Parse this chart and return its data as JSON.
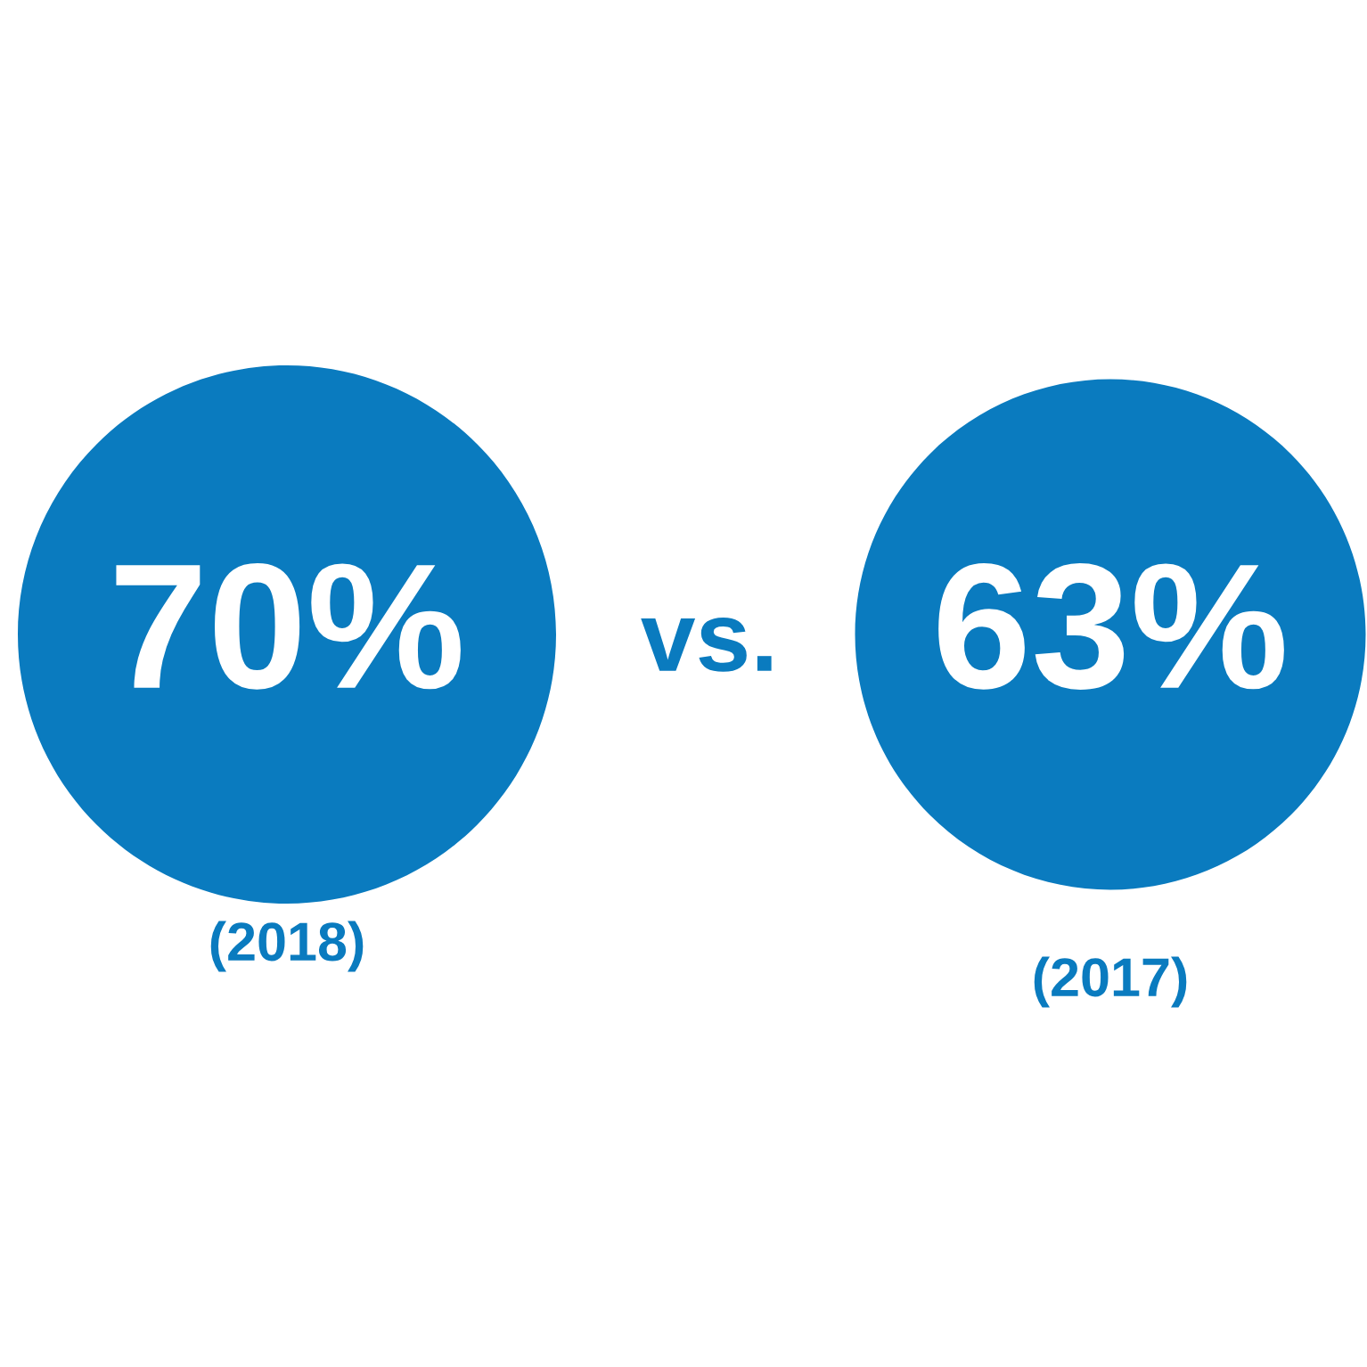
{
  "chart_data": {
    "type": "other",
    "categories": [
      "(2018)",
      "(2017)"
    ],
    "values": [
      70,
      63
    ],
    "value_labels": [
      "70%",
      "63%"
    ],
    "color": "#0a7bbf",
    "annotations": [
      "vs."
    ]
  }
}
